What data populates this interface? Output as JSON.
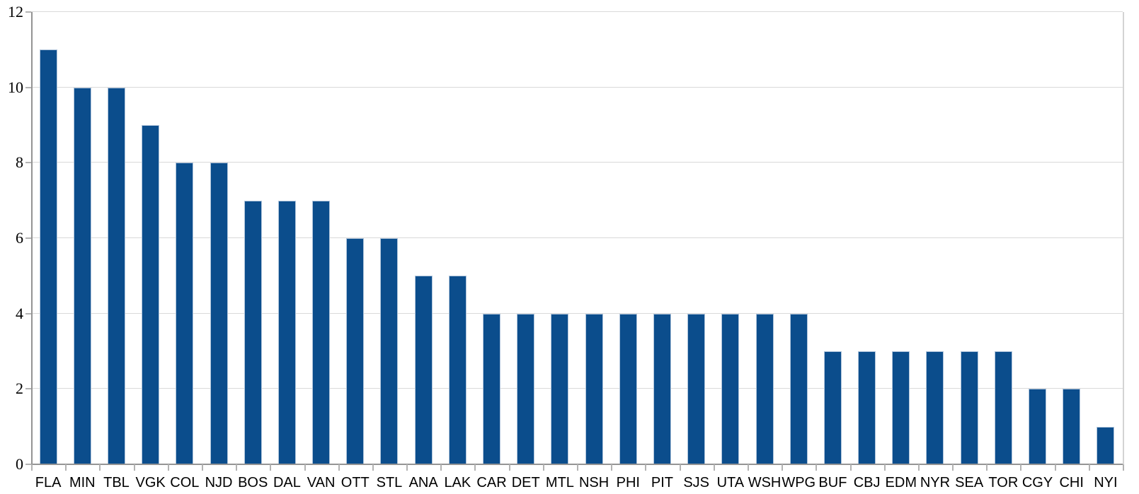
{
  "chart_data": {
    "type": "bar",
    "title": "",
    "xlabel": "",
    "ylabel": "",
    "categories": [
      "FLA",
      "MIN",
      "TBL",
      "VGK",
      "COL",
      "NJD",
      "BOS",
      "DAL",
      "VAN",
      "OTT",
      "STL",
      "ANA",
      "LAK",
      "CAR",
      "DET",
      "MTL",
      "NSH",
      "PHI",
      "PIT",
      "SJS",
      "UTA",
      "WSH",
      "WPG",
      "BUF",
      "CBJ",
      "EDM",
      "NYR",
      "SEA",
      "TOR",
      "CGY",
      "CHI",
      "NYI"
    ],
    "values": [
      11,
      10,
      10,
      9,
      8,
      8,
      7,
      7,
      7,
      6,
      6,
      5,
      5,
      4,
      4,
      4,
      4,
      4,
      4,
      4,
      4,
      4,
      4,
      3,
      3,
      3,
      3,
      3,
      3,
      2,
      2,
      1
    ],
    "ylim": [
      0,
      12
    ],
    "yticks": [
      0,
      2,
      4,
      6,
      8,
      10,
      12
    ],
    "grid": true,
    "legend": "none",
    "colors": {
      "bar_fill": "#0B4D8C",
      "bar_border": "#AFC4DB",
      "gridline": "#D9D9D9",
      "plot_border": "#D4D4D4",
      "axis": "#949494",
      "tick": "#B3B3B3",
      "label": "#000000",
      "background": "#FFFFFF"
    }
  }
}
